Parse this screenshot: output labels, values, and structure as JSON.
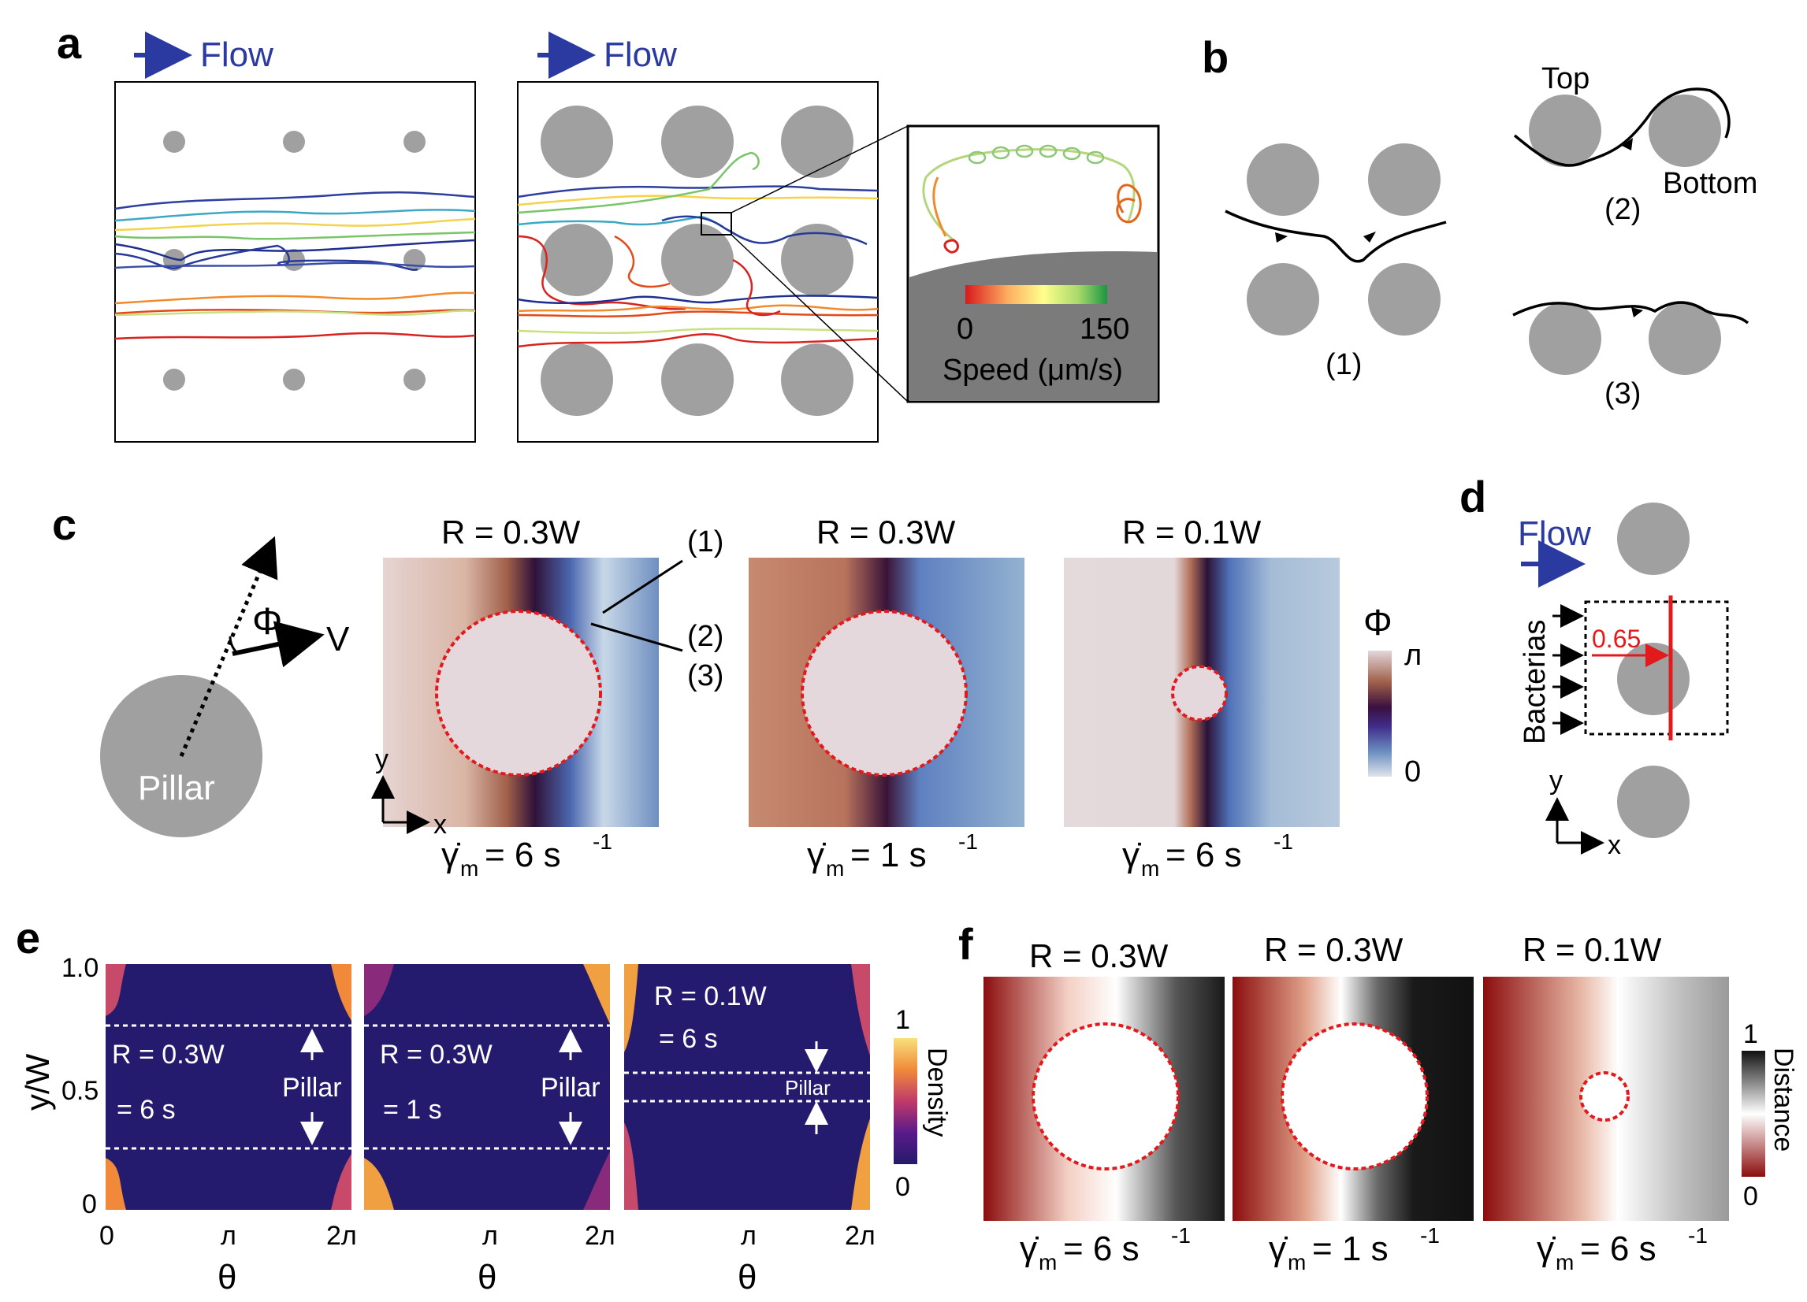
{
  "panels": {
    "a": {
      "letter": "a",
      "flow_left": "Flow",
      "flow_right": "Flow",
      "colorbar_min": "0",
      "colorbar_max": "150",
      "colorbar_label": "Speed (μm/s)",
      "colorbar_colors": [
        "#d7191c",
        "#fdae61",
        "#ffff8c",
        "#a6d96a",
        "#1a9641"
      ]
    },
    "b": {
      "letter": "b",
      "case1": "(1)",
      "case2": "(2)",
      "case3": "(3)",
      "top": "Top",
      "bottom": "Bottom"
    },
    "c": {
      "letter": "c",
      "pillar": "Pillar",
      "phi": "Φ",
      "v": "V",
      "axis_y": "y",
      "axis_x": "x",
      "titles": [
        "R = 0.3W",
        "R = 0.3W",
        "R = 0.1W"
      ],
      "shear_symbol": "γ̇",
      "shear_sub": "m",
      "shear_values": [
        "= 6 s",
        "= 1 s",
        "= 6 s"
      ],
      "shear_exp": "-1",
      "callouts": [
        "(1)",
        "(2)",
        "(3)"
      ],
      "cbar_title": "Φ",
      "cbar_max": "л",
      "cbar_min": "0"
    },
    "d": {
      "letter": "d",
      "flow": "Flow",
      "bacterias": "Bacterias",
      "measure": "0.65",
      "axis_y": "y",
      "axis_x": "x"
    },
    "e": {
      "letter": "e",
      "ylabel": "y/W",
      "yticks": [
        "1.0",
        "0.5",
        "0"
      ],
      "xlabel": "θ",
      "xticks": [
        "0",
        "л",
        "2л"
      ],
      "panels": [
        {
          "r": "R = 0.3W",
          "shear": "= 6 s",
          "pillar": "Pillar"
        },
        {
          "r": "R = 0.3W",
          "shear": "= 1 s",
          "pillar": "Pillar"
        },
        {
          "r": "R = 0.1W",
          "shear": "= 6 s",
          "pillar": "Pillar"
        }
      ],
      "cbar_label": "Density",
      "cbar_max": "1",
      "cbar_min": "0"
    },
    "f": {
      "letter": "f",
      "titles": [
        "R = 0.3W",
        "R = 0.3W",
        "R = 0.1W"
      ],
      "shear_values": [
        "= 6 s",
        "= 1 s",
        "= 6 s"
      ],
      "cbar_label": "Distance",
      "cbar_max": "1",
      "cbar_min": "0"
    }
  }
}
